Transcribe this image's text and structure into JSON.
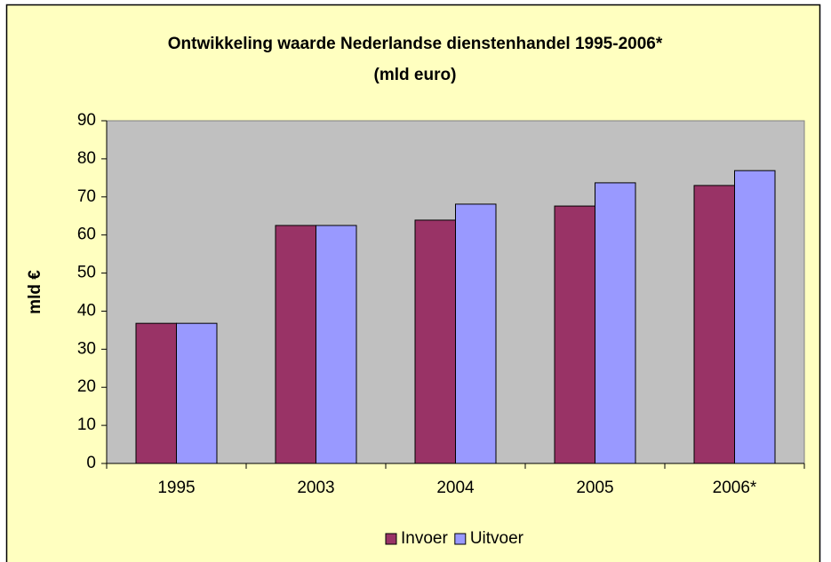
{
  "chart_data": {
    "type": "bar",
    "title": "Ontwikkeling waarde Nederlandse dienstenhandel 1995-2006*",
    "subtitle": "(mld euro)",
    "y_label": "mld €",
    "categories": [
      "1995",
      "2003",
      "2004",
      "2005",
      "2006*"
    ],
    "series": [
      {
        "name": "Invoer",
        "color": "#993366",
        "values": [
          36.8,
          62.5,
          63.9,
          67.6,
          73.0
        ]
      },
      {
        "name": "Uitvoer",
        "color": "#9999FF",
        "values": [
          36.8,
          62.5,
          68.1,
          73.7,
          76.9
        ]
      }
    ],
    "ylim": [
      0,
      90
    ],
    "yticks": [
      0,
      10,
      20,
      30,
      40,
      50,
      60,
      70,
      80,
      90
    ],
    "grid": false,
    "legend": "bottom"
  }
}
